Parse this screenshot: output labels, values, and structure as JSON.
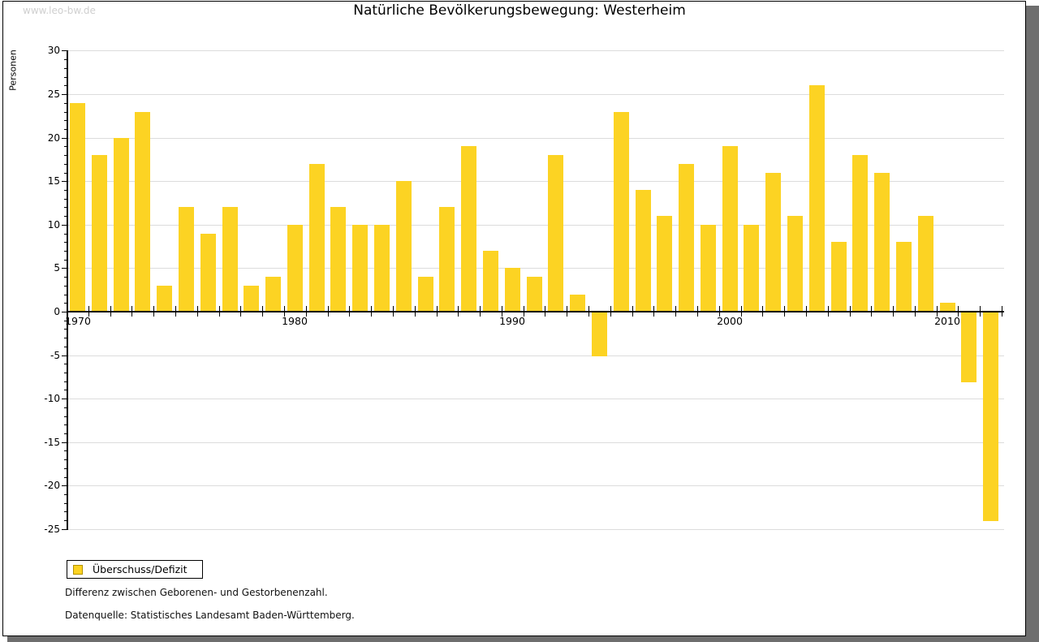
{
  "watermark": "www.leo-bw.de",
  "title": "Natürliche Bevölkerungsbewegung: Westerheim",
  "ylabel": "Personen",
  "legend": {
    "label": "Überschuss/Defizit"
  },
  "notes": {
    "line1": "Differenz zwischen Geborenen- und Gestorbenenzahl.",
    "line2": "Datenquelle: Statistisches Landesamt Baden-Württemberg."
  },
  "colors": {
    "bar": "#fcd323",
    "gridline": "#dcdcdc",
    "axis": "#000000",
    "shadow": "#6e6e6e",
    "watermark": "#cfcfcf",
    "legend_swatch_border": "#b39200"
  },
  "chart_data": {
    "type": "bar",
    "title": "Natürliche Bevölkerungsbewegung: Westerheim",
    "xlabel": "",
    "ylabel": "Personen",
    "ylim": [
      -25,
      30
    ],
    "ytick_step": 5,
    "grid": true,
    "legend_position": "bottom-left",
    "legend_entries": [
      "Überschuss/Defizit"
    ],
    "xticks_labeled": [
      1970,
      1980,
      1990,
      2000,
      2010
    ],
    "categories": [
      1970,
      1971,
      1972,
      1973,
      1974,
      1975,
      1976,
      1977,
      1978,
      1979,
      1980,
      1981,
      1982,
      1983,
      1984,
      1985,
      1986,
      1987,
      1988,
      1989,
      1990,
      1991,
      1992,
      1993,
      1994,
      1995,
      1996,
      1997,
      1998,
      1999,
      2000,
      2001,
      2002,
      2003,
      2004,
      2005,
      2006,
      2007,
      2008,
      2009,
      2010,
      2011,
      2012
    ],
    "values": [
      24,
      18,
      20,
      23,
      3,
      12,
      9,
      12,
      3,
      4,
      10,
      17,
      12,
      10,
      10,
      15,
      4,
      12,
      19,
      7,
      5,
      4,
      18,
      2,
      -5,
      23,
      14,
      11,
      17,
      10,
      19,
      10,
      16,
      11,
      26,
      8,
      18,
      16,
      8,
      11,
      1,
      -8,
      -24
    ]
  }
}
